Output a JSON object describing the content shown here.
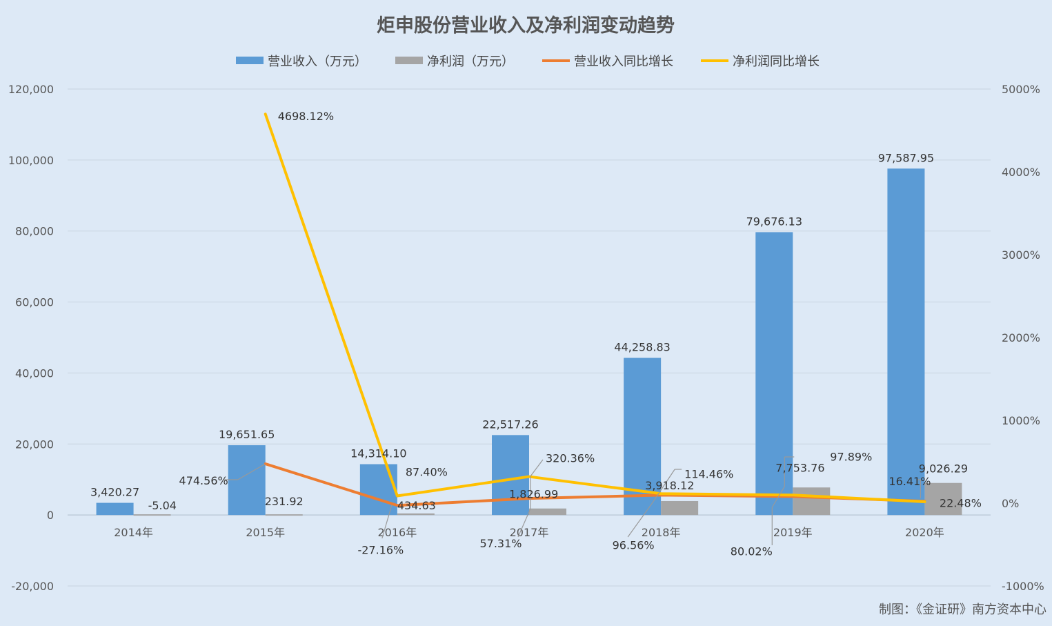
{
  "chart_data": {
    "type": "bar",
    "title": "炬申股份营业收入及净利润变动趋势",
    "credit": "制图：《金证研》南方资本中心",
    "categories": [
      "2014年",
      "2015年",
      "2016年",
      "2017年",
      "2018年",
      "2019年",
      "2020年"
    ],
    "series": [
      {
        "name": "营业收入（万元）",
        "kind": "bar",
        "axis": "left",
        "color": "#5b9bd5",
        "values": [
          3420.27,
          19651.65,
          14314.1,
          22517.26,
          44258.83,
          79676.13,
          97587.95
        ],
        "labels": [
          "3,420.27",
          "19,651.65",
          "14,314.10",
          "22,517.26",
          "44,258.83",
          "79,676.13",
          "97,587.95"
        ]
      },
      {
        "name": "净利润（万元）",
        "kind": "bar",
        "axis": "left",
        "color": "#a5a5a5",
        "values": [
          -5.04,
          231.92,
          434.63,
          1826.99,
          3918.12,
          7753.76,
          9026.29
        ],
        "labels": [
          "-5.04",
          "231.92",
          "434.63",
          "1,826.99",
          "3,918.12",
          "7,753.76",
          "9,026.29"
        ]
      },
      {
        "name": "营业收入同比增长",
        "kind": "line",
        "axis": "right",
        "color": "#ed7d31",
        "values": [
          null,
          474.56,
          -27.16,
          57.31,
          96.56,
          80.02,
          22.48
        ],
        "labels": [
          "",
          "474.56%",
          "-27.16%",
          "57.31%",
          "96.56%",
          "80.02%",
          "22.48%"
        ]
      },
      {
        "name": "净利润同比增长",
        "kind": "line",
        "axis": "right",
        "color": "#ffc000",
        "values": [
          null,
          4698.12,
          87.4,
          320.36,
          114.46,
          97.89,
          16.41
        ],
        "labels": [
          "",
          "4698.12%",
          "87.40%",
          "320.36%",
          "114.46%",
          "97.89%",
          "16.41%"
        ]
      }
    ],
    "y_left": {
      "min": -20000,
      "max": 120000,
      "ticks": [
        "-20,000",
        "0",
        "20,000",
        "40,000",
        "60,000",
        "80,000",
        "100,000",
        "120,000"
      ]
    },
    "y_right": {
      "min": -1000,
      "max": 5000,
      "ticks": [
        "-1000%",
        "0%",
        "1000%",
        "2000%",
        "3000%",
        "4000%",
        "5000%"
      ]
    },
    "grid": true,
    "legend": "top"
  }
}
